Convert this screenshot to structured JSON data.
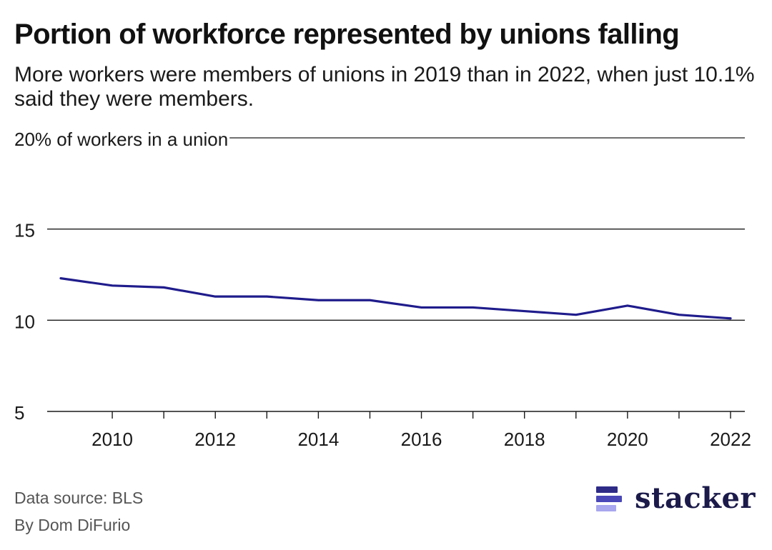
{
  "title": "Portion of workforce represented by unions falling",
  "subtitle": "More workers were members of unions in 2019 than in 2022, when just 10.1% said they were members.",
  "footer": {
    "source": "Data source: BLS",
    "byline": "By Dom DiFurio"
  },
  "logo": {
    "text": "stacker",
    "colors": [
      "#2e2b87",
      "#4a47b8",
      "#a9a7ee"
    ]
  },
  "chart_data": {
    "type": "line",
    "x": [
      2009,
      2010,
      2011,
      2012,
      2013,
      2014,
      2015,
      2016,
      2017,
      2018,
      2019,
      2020,
      2021,
      2022
    ],
    "series": [
      {
        "values": [
          12.3,
          11.9,
          11.8,
          11.3,
          11.3,
          11.1,
          11.1,
          10.7,
          10.7,
          10.5,
          10.3,
          10.8,
          10.3,
          10.1
        ],
        "color": "#1f1c8c"
      }
    ],
    "ylim": [
      5,
      20
    ],
    "y_ticks": [
      5,
      10,
      15,
      20
    ],
    "y_tick_labels": [
      "5",
      "10",
      "15",
      "20% of workers in a union"
    ],
    "x_ticks": [
      2010,
      2012,
      2014,
      2016,
      2018,
      2020,
      2022
    ],
    "x_tick_labels": [
      "2010",
      "2012",
      "2014",
      "2016",
      "2018",
      "2020",
      "2022"
    ],
    "xlim": [
      2009,
      2022
    ],
    "grid": true
  }
}
